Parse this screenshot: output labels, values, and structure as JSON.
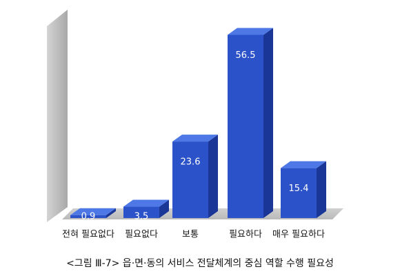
{
  "chart_data": {
    "type": "bar3d",
    "title": "<그림 Ⅲ-7> 읍·면·동의 서비스 전달체계의 중심 역할 수행 필요성",
    "categories": [
      "전혀 필요없다",
      "필요없다",
      "보통",
      "필요하다",
      "매우 필요하다"
    ],
    "values": [
      0.9,
      3.5,
      23.6,
      56.5,
      15.4
    ],
    "color": "#2b52c9"
  }
}
